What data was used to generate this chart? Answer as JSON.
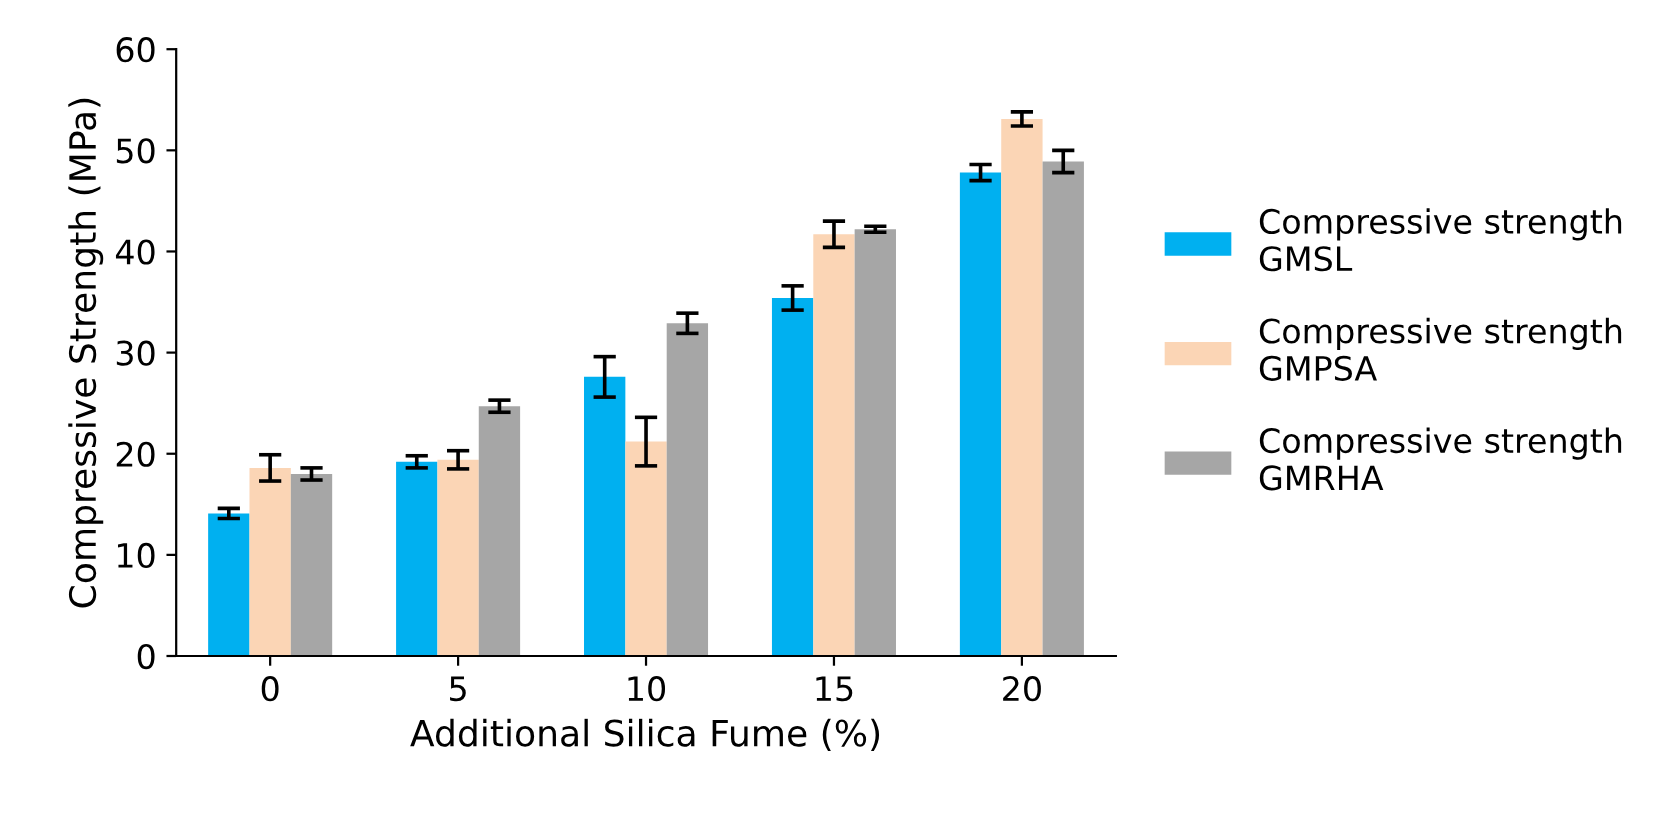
{
  "chart_data": {
    "type": "bar",
    "xlabel": "Additional Silica Fume (%)",
    "ylabel": "Compressive Strength (MPa)",
    "categories": [
      "0",
      "5",
      "10",
      "15",
      "20"
    ],
    "series": [
      {
        "name": "Compressive strength\nGMSL",
        "color": "#00b0f0",
        "values": [
          14.1,
          19.2,
          27.6,
          35.4,
          47.8
        ],
        "errors": [
          0.5,
          0.6,
          2.0,
          1.2,
          0.8
        ]
      },
      {
        "name": "Compressive strength\nGMPSA",
        "color": "#fbd5b5",
        "values": [
          18.6,
          19.4,
          21.2,
          41.7,
          53.1
        ],
        "errors": [
          1.3,
          0.9,
          2.4,
          1.3,
          0.7
        ]
      },
      {
        "name": "Compressive strength\nGMRHA",
        "color": "#a6a6a6",
        "values": [
          18.0,
          24.7,
          32.9,
          42.2,
          48.9
        ],
        "errors": [
          0.6,
          0.6,
          1.0,
          0.3,
          1.1
        ]
      }
    ],
    "ylim": [
      0,
      60
    ],
    "yticks": [
      0,
      10,
      20,
      30,
      40,
      50,
      60
    ],
    "grid": false,
    "legend": "right"
  }
}
